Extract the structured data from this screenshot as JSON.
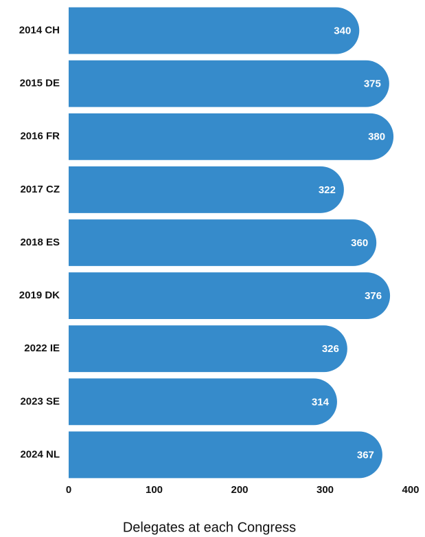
{
  "chart_data": {
    "type": "bar",
    "orientation": "horizontal",
    "xlabel": "Delegates at each Congress",
    "categories": [
      "2014 CH",
      "2015 DE",
      "2016 FR",
      "2017 CZ",
      "2018 ES",
      "2019 DK",
      "2022 IE",
      "2023 SE",
      "2024 NL"
    ],
    "values": [
      340,
      375,
      380,
      322,
      360,
      376,
      326,
      314,
      367
    ],
    "color": "#368bcb",
    "xlim": [
      0,
      400
    ],
    "xticks": [
      0,
      100,
      200,
      300,
      400
    ],
    "grid": false
  }
}
